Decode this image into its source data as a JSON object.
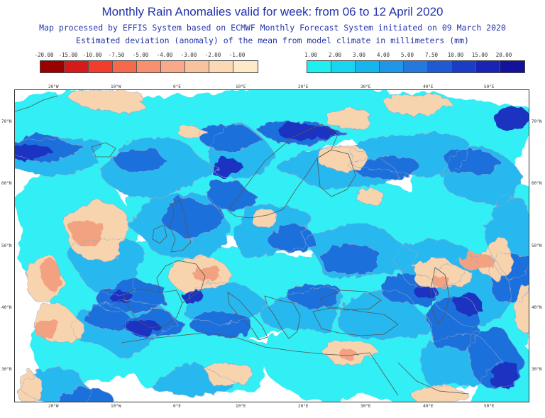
{
  "header": {
    "title": "Monthly Rain Anomalies valid for week: from 06 to 12 April 2020",
    "subtitle_1": "Map processed by EFFIS System based on ECMWF Monthly Forecast System initiated on 09 March 2020",
    "subtitle_2": "Estimated deviation (anomaly) of the mean from model climate in millimeters (mm)"
  },
  "legend_negative": {
    "labels": [
      "-20.00",
      "-15.00",
      "-10.00",
      "-7.50",
      "-5.00",
      "-4.00",
      "-3.00",
      "-2.00",
      "-1.00"
    ],
    "colors": [
      "#9b0000",
      "#d61a1a",
      "#f23c2c",
      "#f66a4c",
      "#f7906e",
      "#f8a98a",
      "#f9c29f",
      "#fbd9b4",
      "#fdeac8"
    ]
  },
  "legend_positive": {
    "labels": [
      "1.00",
      "2.00",
      "3.00",
      "4.00",
      "5.00",
      "7.50",
      "10.00",
      "15.00",
      "20.00"
    ],
    "colors": [
      "#1ef0f0",
      "#17d6f2",
      "#15b6ee",
      "#1f96e6",
      "#2479dc",
      "#1f5ad2",
      "#1a3dc6",
      "#1a24b4",
      "#12129a"
    ]
  },
  "map": {
    "longitude_labels": [
      "20°W",
      "10°W",
      "0°E",
      "10°E",
      "20°E",
      "30°E",
      "40°E",
      "50°E"
    ],
    "latitude_labels": [
      "70°N",
      "60°N",
      "50°N",
      "40°N",
      "30°N"
    ],
    "colors": {
      "light_cyan": "#33eef5",
      "sky_blue": "#25b8ef",
      "medium_blue": "#1e6fdb",
      "deep_blue": "#1a30c0",
      "light_tan": "#f7d3ae",
      "salmon": "#f3a281",
      "coastline": "#555555",
      "contour": "#9aa6c8"
    }
  }
}
